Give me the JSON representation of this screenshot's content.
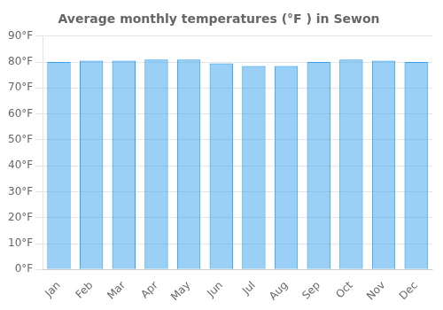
{
  "chart_data": {
    "type": "bar",
    "title": "Average monthly temperatures (°F ) in Sewon",
    "categories": [
      "Jan",
      "Feb",
      "Mar",
      "Apr",
      "May",
      "Jun",
      "Jul",
      "Aug",
      "Sep",
      "Oct",
      "Nov",
      "Dec"
    ],
    "values": [
      80,
      80.5,
      80.5,
      81,
      81,
      79.5,
      78.5,
      78.5,
      80,
      81,
      80.5,
      80
    ],
    "ylim": [
      0,
      90
    ],
    "yticks": [
      {
        "value": 0,
        "label": "0°F"
      },
      {
        "value": 10,
        "label": "10°F"
      },
      {
        "value": 20,
        "label": "20°F"
      },
      {
        "value": 30,
        "label": "30°F"
      },
      {
        "value": 40,
        "label": "40°F"
      },
      {
        "value": 50,
        "label": "50°F"
      },
      {
        "value": 60,
        "label": "60°F"
      },
      {
        "value": 70,
        "label": "70°F"
      },
      {
        "value": 80,
        "label": "80°F"
      },
      {
        "value": 90,
        "label": "90°F"
      }
    ],
    "grid": true
  }
}
